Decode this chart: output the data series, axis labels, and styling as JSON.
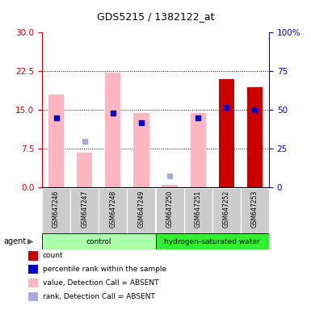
{
  "title": "GDS5215 / 1382122_at",
  "samples": [
    "GSM647246",
    "GSM647247",
    "GSM647248",
    "GSM647249",
    "GSM647250",
    "GSM647251",
    "GSM647252",
    "GSM647253"
  ],
  "value_absent": [
    18.0,
    6.8,
    22.2,
    14.5,
    0.5,
    14.5,
    null,
    null
  ],
  "rank_absent_vals": [
    null,
    9.0,
    null,
    null,
    2.2,
    null,
    null,
    null
  ],
  "value_present": [
    null,
    null,
    null,
    null,
    null,
    null,
    21.0,
    19.5
  ],
  "rank_present_vals": [
    13.5,
    null,
    14.5,
    12.5,
    null,
    13.5,
    15.5,
    15.0
  ],
  "ylim_left": [
    0,
    30
  ],
  "ylim_right": [
    0,
    100
  ],
  "yticks_left": [
    0,
    7.5,
    15,
    22.5,
    30
  ],
  "yticks_right": [
    0,
    25,
    50,
    75,
    100
  ],
  "color_count": "#CC0000",
  "color_rank": "#0000CC",
  "color_value_absent": "#FFB6C1",
  "color_rank_absent": "#AAAADD",
  "bar_width": 0.55,
  "group_control_color": "#AAFFAA",
  "group_hw_color": "#33EE33",
  "sample_box_color": "#CCCCCC",
  "legend_items": [
    {
      "label": "count",
      "color": "#CC0000"
    },
    {
      "label": "percentile rank within the sample",
      "color": "#0000CC"
    },
    {
      "label": "value, Detection Call = ABSENT",
      "color": "#FFB6C1"
    },
    {
      "label": "rank, Detection Call = ABSENT",
      "color": "#AAAADD"
    }
  ]
}
